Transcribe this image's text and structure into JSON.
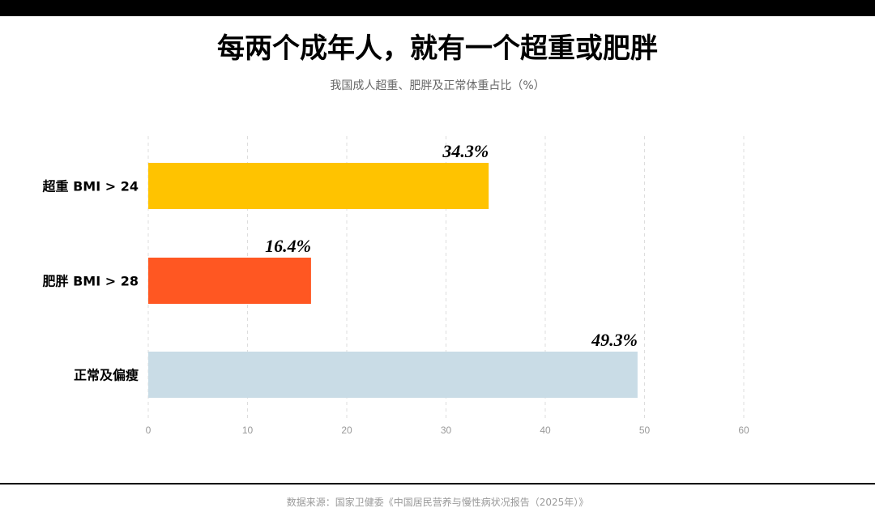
{
  "header": {
    "title": "每两个成年人，就有一个超重或肥胖",
    "subtitle": "我国成人超重、肥胖及正常体重占比（%）"
  },
  "footer": {
    "source": "数据来源：国家卫健委《中国居民营养与慢性病状况报告（2025年）》"
  },
  "colors": {
    "overweight": "#FFC300",
    "obese": "#FF5722",
    "normal": "#C9DCE6"
  },
  "chart_data": {
    "type": "bar",
    "orientation": "horizontal",
    "categories": [
      "超重 BMI > 24",
      "肥胖 BMI > 28",
      "正常及偏瘦"
    ],
    "values": [
      34.3,
      16.4,
      49.3
    ],
    "value_labels": [
      "34.3%",
      "16.4%",
      "49.3%"
    ],
    "bar_colors": [
      "#FFC300",
      "#FF5722",
      "#C9DCE6"
    ],
    "xlim": [
      0,
      60
    ],
    "x_ticks": [
      0,
      10,
      20,
      30,
      40,
      50,
      60
    ],
    "x_tick_labels": [
      "0",
      "10",
      "20",
      "30",
      "40",
      "50",
      "60"
    ],
    "grid": "vertical-dashed",
    "legend": "none"
  }
}
